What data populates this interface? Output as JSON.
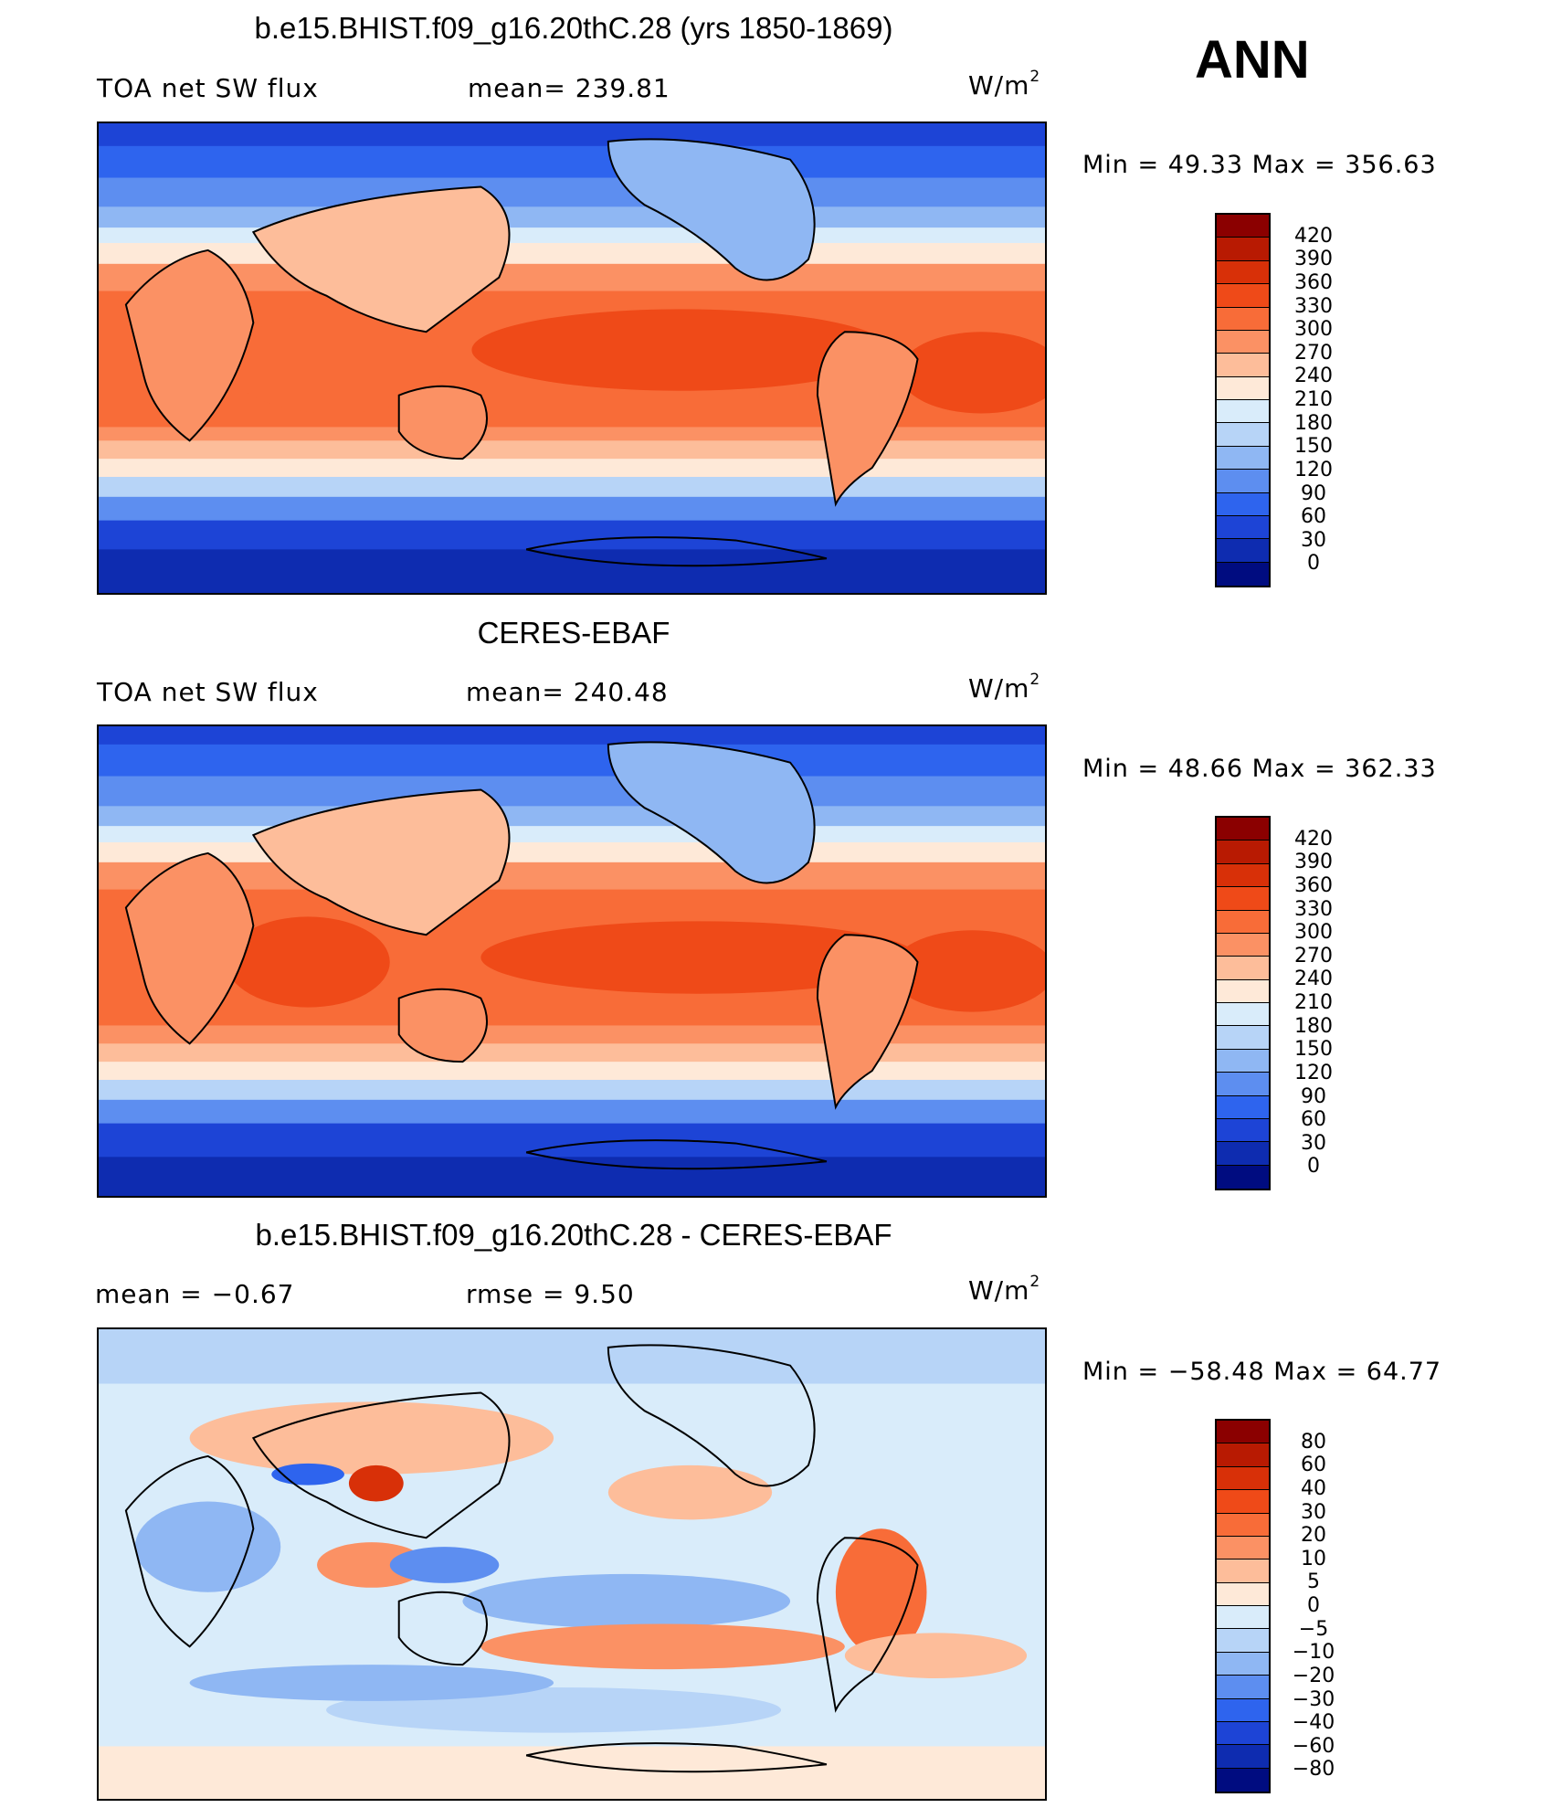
{
  "season": "ANN",
  "panels": [
    {
      "title": "b.e15.BHIST.f09_g16.20thC.28 (yrs 1850-1869)",
      "left_label": "TOA net SW flux",
      "middle_label": "mean= 239.81",
      "units": "W/m",
      "units_sup": "2",
      "min_max": "Min =   49.33 Max = 356.63",
      "colorbar_type": "absolute"
    },
    {
      "title": "CERES-EBAF",
      "left_label": "TOA net SW flux",
      "middle_label": "mean= 240.48",
      "units": "W/m",
      "units_sup": "2",
      "min_max": "Min =   48.66 Max = 362.33",
      "colorbar_type": "absolute"
    },
    {
      "title": "b.e15.BHIST.f09_g16.20thC.28 - CERES-EBAF",
      "left_label": "mean =   −0.67",
      "middle_label": "rmse =    9.50",
      "units": "W/m",
      "units_sup": "2",
      "min_max": "Min = −58.48 Max =   64.77",
      "colorbar_type": "difference"
    }
  ],
  "colorbars": {
    "absolute": {
      "labels": [
        "420",
        "390",
        "360",
        "330",
        "300",
        "270",
        "240",
        "210",
        "180",
        "150",
        "120",
        "90",
        "60",
        "30",
        "0"
      ],
      "colors": [
        "#8b0000",
        "#b81a02",
        "#d83008",
        "#ef4a18",
        "#f86c38",
        "#fb9164",
        "#fdbd9a",
        "#fee9d8",
        "#d9ecfa",
        "#b7d4f7",
        "#8fb7f3",
        "#5d8ef0",
        "#2e64ee",
        "#1d44d6",
        "#0e2cb0",
        "#000c80"
      ]
    },
    "difference": {
      "labels": [
        "80",
        "60",
        "40",
        "30",
        "20",
        "10",
        "5",
        "0",
        "−5",
        "−10",
        "−20",
        "−30",
        "−40",
        "−60",
        "−80"
      ],
      "colors": [
        "#8b0000",
        "#b81a02",
        "#d83008",
        "#ef4a18",
        "#f86c38",
        "#fb9164",
        "#fdbd9a",
        "#fee9d8",
        "#d9ecfa",
        "#b7d4f7",
        "#8fb7f3",
        "#5d8ef0",
        "#2e64ee",
        "#1d44d6",
        "#0e2cb0",
        "#000c80"
      ]
    }
  }
}
